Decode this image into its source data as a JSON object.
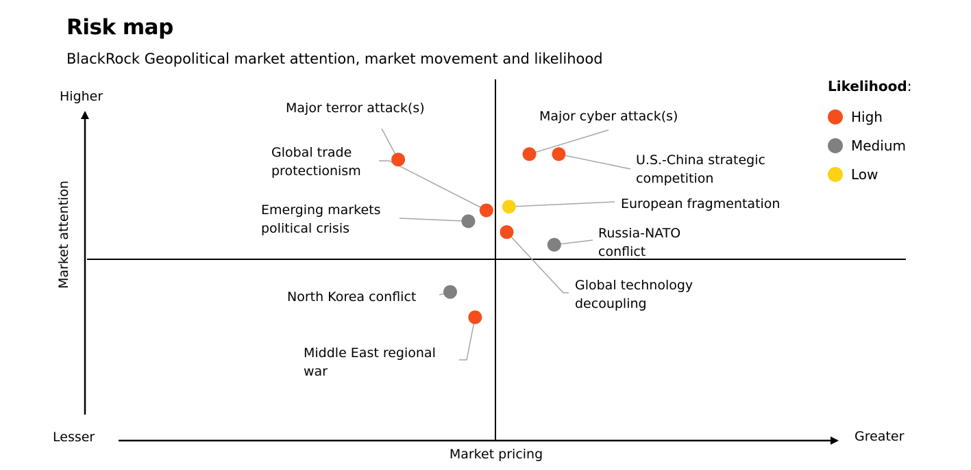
{
  "title": "Risk map",
  "subtitle": "BlackRock Geopolitical market attention, market movement and likelihood",
  "colors": {
    "High": "#f44e1c",
    "Medium": "#808080",
    "Low": "#fcd116"
  },
  "legend": {
    "title": "Likelihood",
    "colon": ":",
    "items": [
      {
        "label": "High",
        "level": "High"
      },
      {
        "label": "Medium",
        "level": "Medium"
      },
      {
        "label": "Low",
        "level": "Low"
      }
    ]
  },
  "chart_data": {
    "type": "scatter",
    "title": "Risk map",
    "subtitle": "BlackRock Geopolitical market attention, market movement and likelihood",
    "xlabel": "Market pricing",
    "ylabel": "Market attention",
    "x_axis_low": "Lesser",
    "x_axis_high": "Greater",
    "y_axis_high": "Higher",
    "xlim": [
      -1,
      1
    ],
    "ylim": [
      -1,
      1
    ],
    "grid": false,
    "legend_position": "top-right",
    "points": [
      {
        "label": "Major terror attack(s)",
        "likelihood": "High",
        "x": -0.43,
        "y": 0.55
      },
      {
        "label": "Global trade protectionism",
        "likelihood": "High",
        "x": -0.04,
        "y": 0.27
      },
      {
        "label": "Emerging markets political crisis",
        "likelihood": "Medium",
        "x": -0.12,
        "y": 0.21
      },
      {
        "label": "Major cyber attack(s)",
        "likelihood": "High",
        "x": 0.15,
        "y": 0.58
      },
      {
        "label": "U.S.-China strategic competition",
        "likelihood": "High",
        "x": 0.28,
        "y": 0.58
      },
      {
        "label": "European fragmentation",
        "likelihood": "Low",
        "x": 0.06,
        "y": 0.29
      },
      {
        "label": "Global technology decoupling",
        "likelihood": "High",
        "x": 0.05,
        "y": 0.15
      },
      {
        "label": "Russia-NATO conflict",
        "likelihood": "Medium",
        "x": 0.26,
        "y": 0.08
      },
      {
        "label": "North Korea conflict",
        "likelihood": "Medium",
        "x": -0.2,
        "y": -0.18
      },
      {
        "label": "Middle East regional war",
        "likelihood": "High",
        "x": -0.09,
        "y": -0.32
      }
    ]
  }
}
